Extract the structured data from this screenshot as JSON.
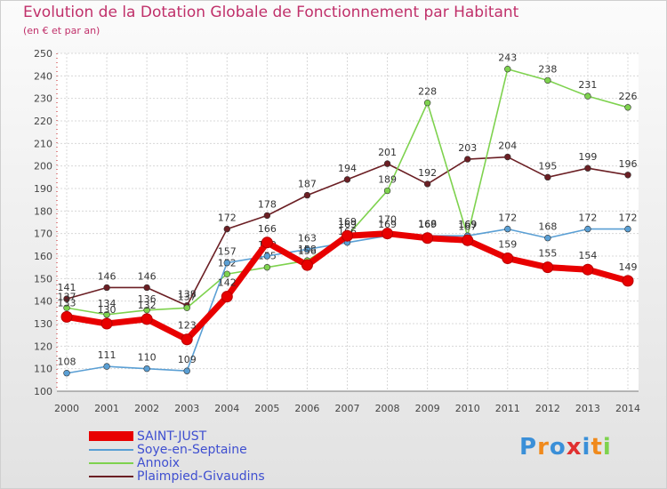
{
  "title": "Evolution de la Dotation Globale de Fonctionnement par Habitant",
  "subtitle": "(en € et par an)",
  "logo": {
    "text": "Proxiti"
  },
  "chart_data": {
    "type": "line",
    "x": [
      "2000",
      "2001",
      "2002",
      "2003",
      "2004",
      "2005",
      "2006",
      "2007",
      "2008",
      "2009",
      "2010",
      "2011",
      "2012",
      "2013",
      "2014"
    ],
    "ylim": [
      100,
      250
    ],
    "yticks": [
      100,
      110,
      120,
      130,
      140,
      150,
      160,
      170,
      180,
      190,
      200,
      210,
      220,
      230,
      240,
      250
    ],
    "grid": true,
    "legend_position": "bottom-left",
    "series": [
      {
        "name": "Plaimpied-Givaudins",
        "color": "#6b1f24",
        "values": [
          141,
          146,
          146,
          138,
          172,
          178,
          187,
          194,
          201,
          192,
          203,
          204,
          195,
          199,
          196
        ],
        "labels": [
          "141",
          "146",
          "146",
          "138",
          "172",
          "178",
          "187",
          "194",
          "201",
          "192",
          "203",
          "204",
          "195",
          "199",
          "196"
        ]
      },
      {
        "name": "Annoix",
        "color": "#7ed24e",
        "values": [
          137,
          134,
          136,
          137,
          152,
          155,
          158,
          169,
          189,
          228,
          169,
          243,
          238,
          231,
          226
        ],
        "labels": [
          "137",
          "134",
          "136",
          "137",
          "152",
          "155",
          "158",
          "169",
          "189",
          "228",
          "169",
          "243",
          "238",
          "231",
          "226"
        ]
      },
      {
        "name": "Soye-en-Septaine",
        "color": "#5a9fd4",
        "values": [
          108,
          111,
          110,
          109,
          157,
          160,
          163,
          166,
          169,
          169,
          169,
          172,
          168,
          172,
          172
        ],
        "labels": [
          "108",
          "111",
          "110",
          "109",
          "157",
          "160",
          "163",
          "166",
          "169",
          "169",
          "169",
          "172",
          "168",
          "172",
          "172"
        ]
      },
      {
        "name": "SAINT-JUST",
        "color": "#e80000",
        "values": [
          133,
          130,
          132,
          123,
          142,
          166,
          156,
          169,
          170,
          168,
          167,
          159,
          155,
          154,
          149
        ],
        "labels": [
          "133",
          "130",
          "132",
          "123",
          "142",
          "166",
          "156",
          "169",
          "170",
          "168",
          "167",
          "159",
          "155",
          "154",
          "149"
        ]
      }
    ]
  },
  "legend": [
    {
      "name": "SAINT-JUST",
      "color": "#e80000"
    },
    {
      "name": "Soye-en-Septaine",
      "color": "#5a9fd4"
    },
    {
      "name": "Annoix",
      "color": "#7ed24e"
    },
    {
      "name": "Plaimpied-Givaudins",
      "color": "#6b1f24"
    }
  ]
}
